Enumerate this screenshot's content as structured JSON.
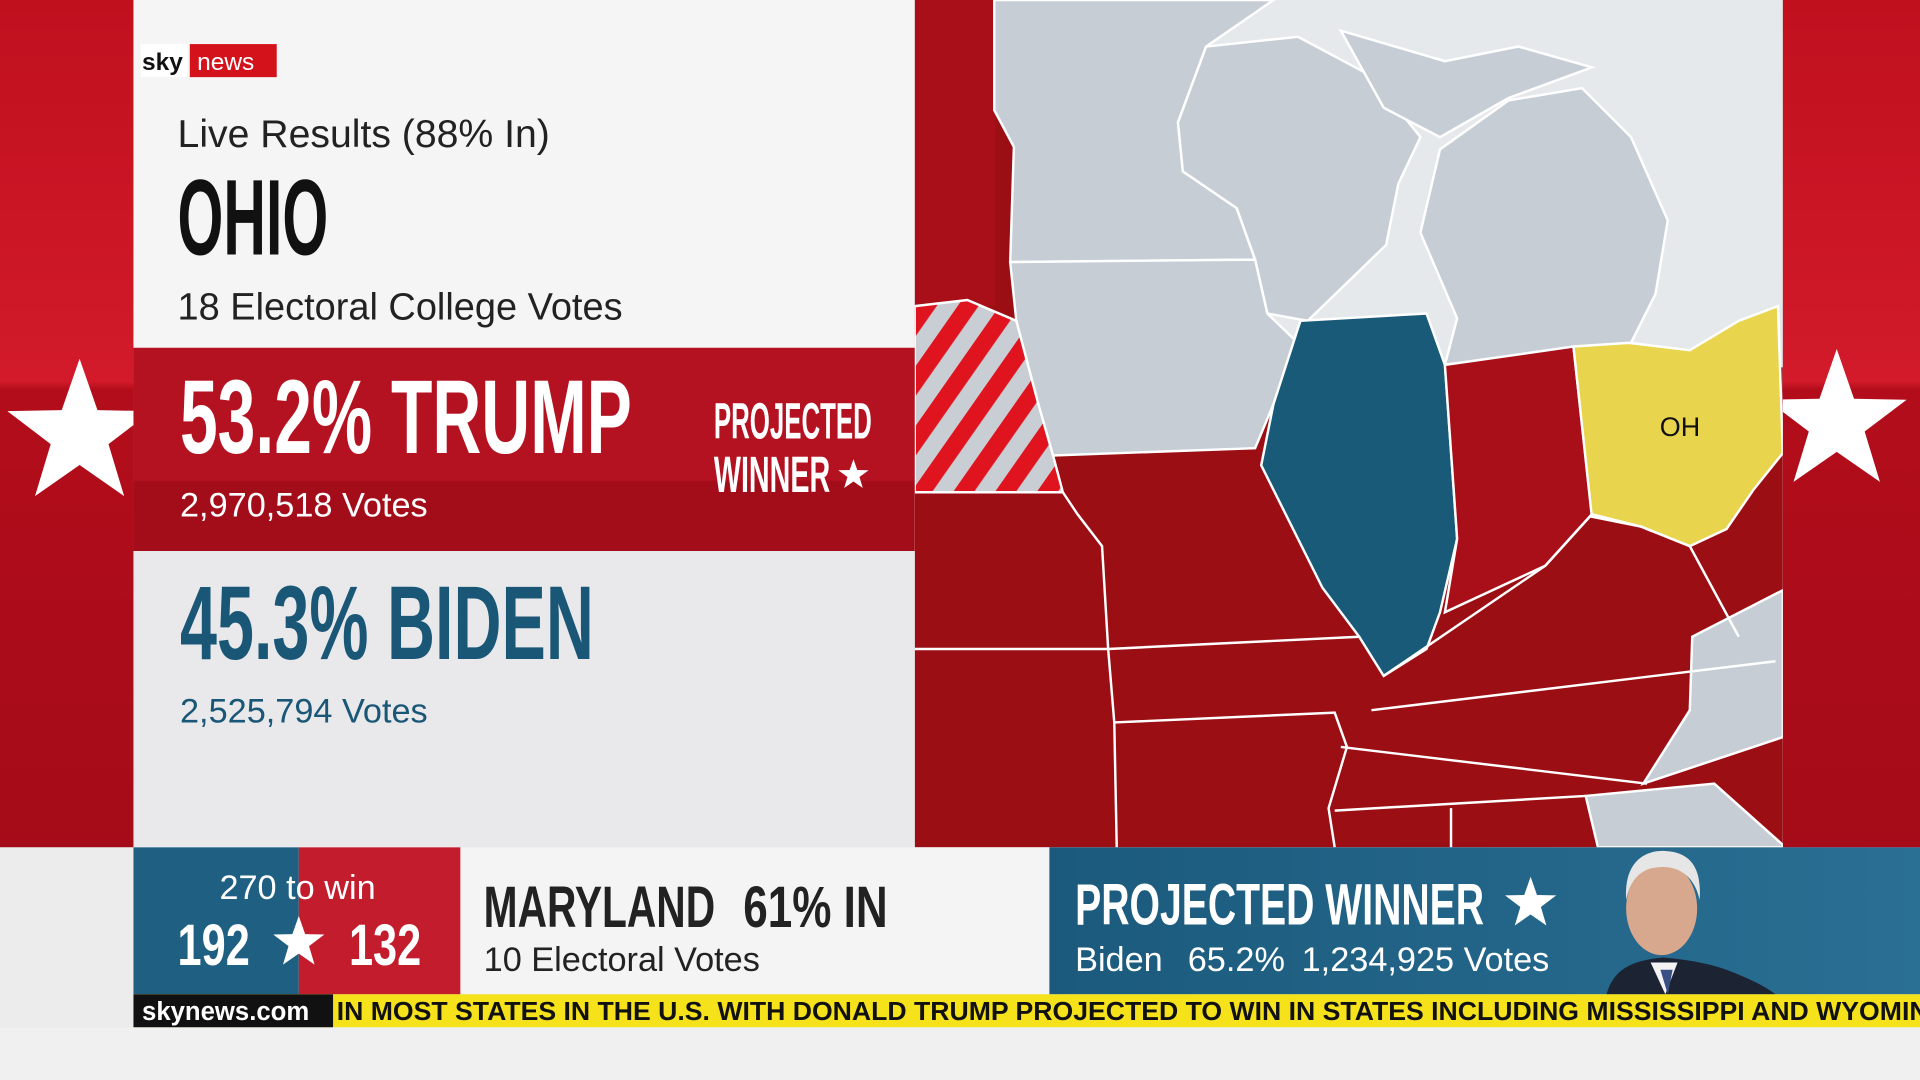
{
  "logo": {
    "brand": "sky",
    "product": "news"
  },
  "panel": {
    "subtitle": "Live Results (88% In)",
    "state": "OHIO",
    "electoral_votes": "18 Electoral College Votes",
    "candidates": [
      {
        "result": "53.2% TRUMP",
        "votes": "2,970,518 Votes"
      },
      {
        "result": "45.3% BIDEN",
        "votes": "2,525,794 Votes"
      }
    ],
    "projected": [
      "PROJECTED",
      "WINNER"
    ]
  },
  "map": {
    "labels": [
      "OH"
    ]
  },
  "scoreboard": {
    "target": "270 to win",
    "left": "192",
    "right": "132"
  },
  "update": {
    "state": "MARYLAND",
    "reporting": "61% IN",
    "electoral_votes": "10 Electoral Votes"
  },
  "winner": {
    "heading": "PROJECTED WINNER",
    "name": "Biden",
    "share": "65.2%",
    "votes": "1,234,925 Votes"
  },
  "ticker": {
    "site": "skynews.com",
    "text": "IN MOST STATES IN THE U.S. WITH DONALD TRUMP PROJECTED TO WIN IN STATES INCLUDING MISSISSIPPI AND WYOMIN"
  }
}
